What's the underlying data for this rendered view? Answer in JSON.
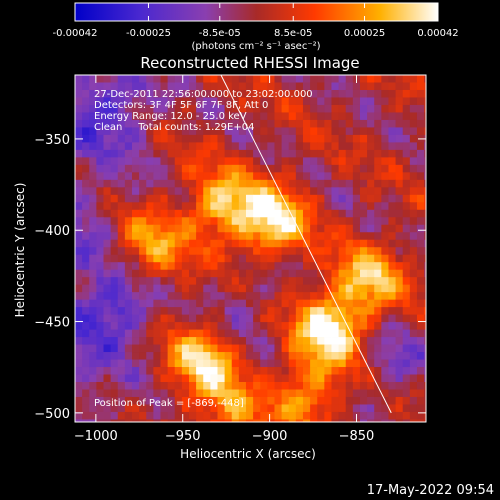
{
  "figure": {
    "title": "Reconstructed RHESSI Image",
    "info_lines": [
      "27-Dec-2011 22:56:00.000 to 23:02:00.000",
      "Detectors: 3F 4F 5F 6F 7F 8F, Att 0",
      "Energy Range: 12.0 - 25.0 keV",
      "Clean     Total counts: 1.29E+04"
    ],
    "peak_label": "Position of Peak = [-869,-448]",
    "timestamp": "17-May-2022 09:54"
  },
  "colorbar": {
    "tick_labels": [
      "-0.00042",
      "-0.00025",
      "-8.5e-05",
      "8.5e-05",
      "0.00025",
      "0.00042"
    ],
    "tick_values": [
      -0.00042,
      -0.00025,
      -8.5e-05,
      8.5e-05,
      0.00025,
      0.00042
    ],
    "range": [
      -0.00042,
      0.00042
    ],
    "unit_label": "(photons cm⁻² s⁻¹ asec⁻²)",
    "colors": [
      "#0000c8",
      "#5a2fd0",
      "#8a3fb0",
      "#b03030",
      "#ff4a00",
      "#ffb000",
      "#ffffff"
    ]
  },
  "chart_data": {
    "type": "heatmap",
    "title": "Reconstructed RHESSI Image",
    "xlabel": "Heliocentric X (arcsec)",
    "ylabel": "Heliocentric Y (arcsec)",
    "xlim": [
      -1012,
      -810
    ],
    "ylim": [
      -505,
      -315
    ],
    "xticks": [
      -1000,
      -950,
      -900,
      -850
    ],
    "yticks": [
      -350,
      -400,
      -450,
      -500
    ],
    "x_tick_labels": [
      "−1000",
      "−950",
      "−900",
      "−850"
    ],
    "y_tick_labels": [
      "−350",
      "−400",
      "−450",
      "−500"
    ],
    "value_range": [
      -0.00042,
      0.00042
    ],
    "peak": [
      -869,
      -448
    ],
    "limb_line": [
      [
        -928,
        -315
      ],
      [
        -830,
        -500
      ]
    ],
    "bright_regions": [
      {
        "x": -868,
        "y": -452,
        "value": 0.00042
      },
      {
        "x": -900,
        "y": -392,
        "value": 0.00038
      },
      {
        "x": -930,
        "y": -385,
        "value": 0.00033
      },
      {
        "x": -940,
        "y": -470,
        "value": 0.00034
      },
      {
        "x": -972,
        "y": -407,
        "value": 0.00028
      },
      {
        "x": -845,
        "y": -425,
        "value": 0.00031
      },
      {
        "x": -880,
        "y": -488,
        "value": 0.00026
      },
      {
        "x": -925,
        "y": -500,
        "value": 0.00022
      }
    ],
    "dim_regions": [
      {
        "x": -990,
        "y": -440,
        "value": -0.00022
      },
      {
        "x": -990,
        "y": -330,
        "value": -0.00018
      },
      {
        "x": -830,
        "y": -470,
        "value": -0.00015
      },
      {
        "x": -915,
        "y": -440,
        "value": -0.0001
      }
    ]
  }
}
